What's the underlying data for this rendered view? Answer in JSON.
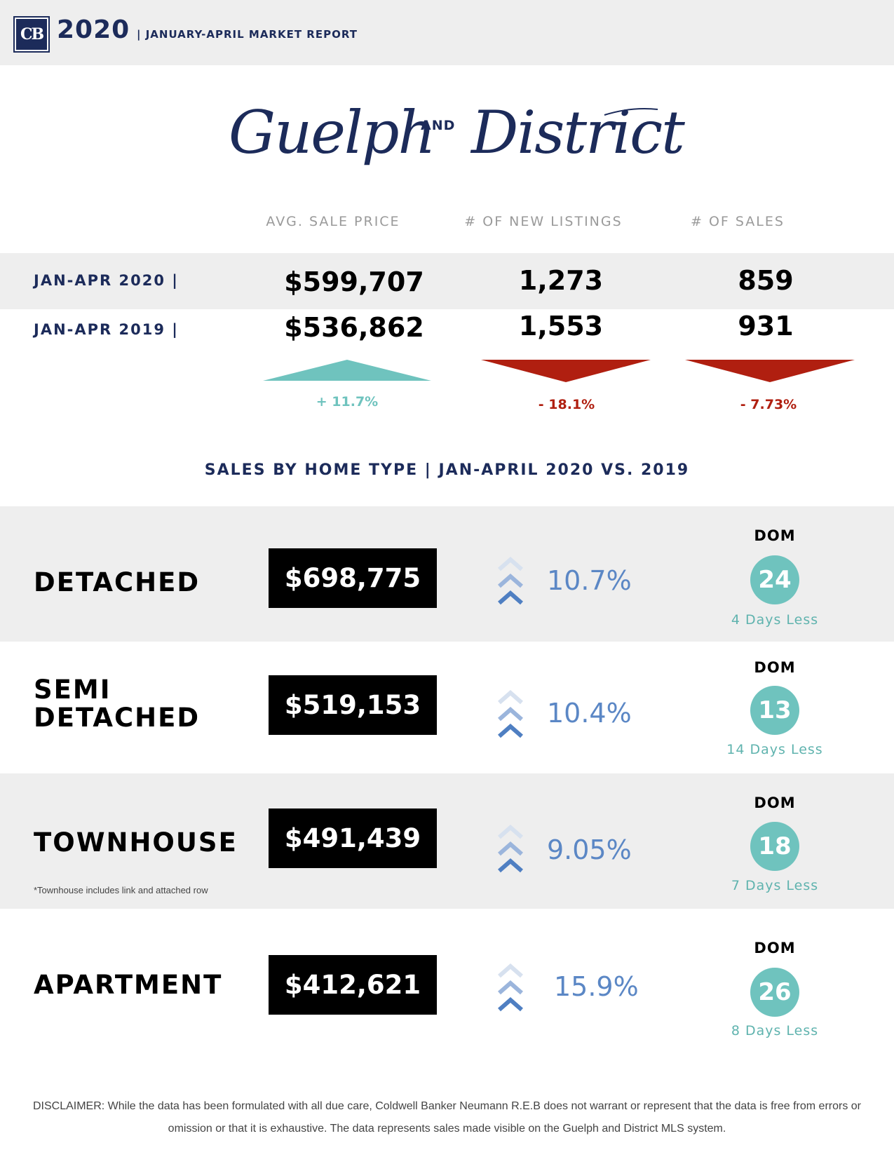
{
  "header": {
    "logo_text": "CB",
    "year": "2020",
    "report_title": "| JANUARY-APRIL MARKET REPORT"
  },
  "title": {
    "part1": "Guelph",
    "connector": "AND",
    "part2": "District"
  },
  "summary": {
    "columns": [
      "AVG. SALE PRICE",
      "# OF NEW LISTINGS",
      "# OF SALES"
    ],
    "rows": [
      {
        "label": "JAN-APR 2020 |",
        "values": [
          "$599,707",
          "1,273",
          "859"
        ]
      },
      {
        "label": "JAN-APR 2019 |",
        "values": [
          "$536,862",
          "1,553",
          "931"
        ]
      }
    ],
    "changes": [
      {
        "text": "+ 11.7%",
        "direction": "up",
        "color": "#6fc3be"
      },
      {
        "text": "- 18.1%",
        "direction": "down",
        "color": "#b01f10"
      },
      {
        "text": "- 7.73%",
        "direction": "down",
        "color": "#b01f10"
      }
    ]
  },
  "section_heading": "SALES BY HOME TYPE | JAN-APRIL 2020 VS. 2019",
  "home_types": [
    {
      "label_lines": [
        "DETACHED"
      ],
      "price": "$698,775",
      "change": "10.7%",
      "dom_label": "DOM",
      "dom": "24",
      "dom_change": "4 Days Less",
      "note": ""
    },
    {
      "label_lines": [
        "SEMI",
        "DETACHED"
      ],
      "price": "$519,153",
      "change": "10.4%",
      "dom_label": "DOM",
      "dom": "13",
      "dom_change": "14 Days Less",
      "note": ""
    },
    {
      "label_lines": [
        "TOWNHOUSE"
      ],
      "price": "$491,439",
      "change": "9.05%",
      "dom_label": "DOM",
      "dom": "18",
      "dom_change": "7 Days Less",
      "note": "*Townhouse includes link and attached row"
    },
    {
      "label_lines": [
        "APARTMENT"
      ],
      "price": "$412,621",
      "change": "15.9%",
      "dom_label": "DOM",
      "dom": "26",
      "dom_change": "8 Days Less",
      "note": ""
    }
  ],
  "colors": {
    "navy": "#1c2b5a",
    "teal": "#6fc3be",
    "red": "#b01f10",
    "blue": "#5b87c5",
    "band": "#eeeeee"
  },
  "disclaimer": "DISCLAIMER: While the data has been formulated with all due care, Coldwell Banker Neumann R.E.B does not warrant or represent that the data is free from errors or omission or that it is exhaustive. The data represents sales made visible on the Guelph and District MLS system."
}
